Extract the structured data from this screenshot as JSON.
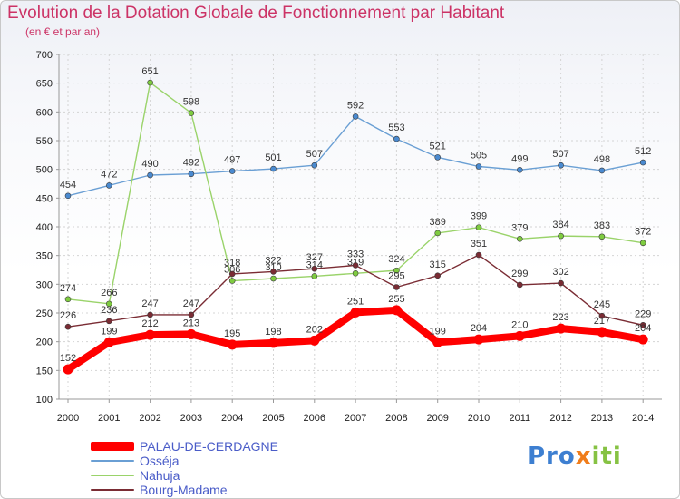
{
  "title": "Evolution de la Dotation Globale de Fonctionnement par Habitant",
  "subtitle": "(en € et par an)",
  "logo": {
    "part1": "Pro",
    "part2": "x",
    "part3": "iti"
  },
  "chart_data": {
    "type": "line",
    "title": "Evolution de la Dotation Globale de Fonctionnement par Habitant",
    "ylabel": "(en € et par an)",
    "xlabel": "",
    "ylim": [
      100,
      700
    ],
    "yticks": [
      100,
      150,
      200,
      250,
      300,
      350,
      400,
      450,
      500,
      550,
      600,
      650,
      700
    ],
    "grid": true,
    "legend_position": "bottom-left",
    "x": [
      "2000",
      "2001",
      "2002",
      "2003",
      "2004",
      "2005",
      "2006",
      "2007",
      "2008",
      "2009",
      "2010",
      "2011",
      "2012",
      "2013",
      "2014"
    ],
    "series": [
      {
        "name": "Osséja",
        "color": "#6a9fd4",
        "marker": "#4a8ad0",
        "values": [
          454,
          472,
          490,
          492,
          497,
          501,
          507,
          592,
          553,
          521,
          505,
          499,
          507,
          498,
          512
        ]
      },
      {
        "name": "Nahuja",
        "color": "#9ad36a",
        "marker": "#7fcc40",
        "values": [
          274,
          266,
          651,
          598,
          306,
          310,
          314,
          319,
          324,
          389,
          399,
          379,
          384,
          383,
          372
        ]
      },
      {
        "name": "Bourg-Madame",
        "color": "#7a2c34",
        "marker": "#7a2c34",
        "values": [
          226,
          236,
          247,
          247,
          318,
          322,
          327,
          333,
          295,
          315,
          351,
          299,
          302,
          245,
          229
        ]
      },
      {
        "name": "PALAU-DE-CERDAGNE",
        "color": "#ff0000",
        "marker": "#ff0000",
        "values": [
          152,
          199,
          212,
          213,
          195,
          198,
          202,
          251,
          255,
          199,
          204,
          210,
          223,
          217,
          204
        ]
      }
    ],
    "value_labels": {
      "Osséja": [
        "454",
        "472",
        "490",
        "492",
        "497",
        "501",
        "507",
        "592",
        "553",
        "521",
        "505",
        "499",
        "507",
        "498",
        "512"
      ],
      "Nahuja": [
        "274",
        "266",
        "651",
        "598",
        "306",
        "310",
        "314",
        "319",
        "324",
        "389",
        "399",
        "379",
        "384",
        "383",
        "372"
      ],
      "Bourg-Madame": [
        "226",
        "236",
        "247",
        "247",
        "318",
        "322",
        "327",
        "333",
        "295",
        "315",
        "351",
        "299",
        "302",
        "245",
        "229"
      ],
      "PALAU-DE-CERDAGNE": [
        "152",
        "199",
        "212",
        "213",
        "195",
        "198",
        "202",
        "251",
        "255",
        "199",
        "204",
        "210",
        "223",
        "217",
        "204"
      ]
    }
  },
  "legend": [
    {
      "label": "PALAU-DE-CERDAGNE",
      "color": "#ff0000"
    },
    {
      "label": "Osséja",
      "color": "#6a9fd4"
    },
    {
      "label": "Nahuja",
      "color": "#9ad36a"
    },
    {
      "label": "Bourg-Madame",
      "color": "#7a2c34"
    }
  ]
}
